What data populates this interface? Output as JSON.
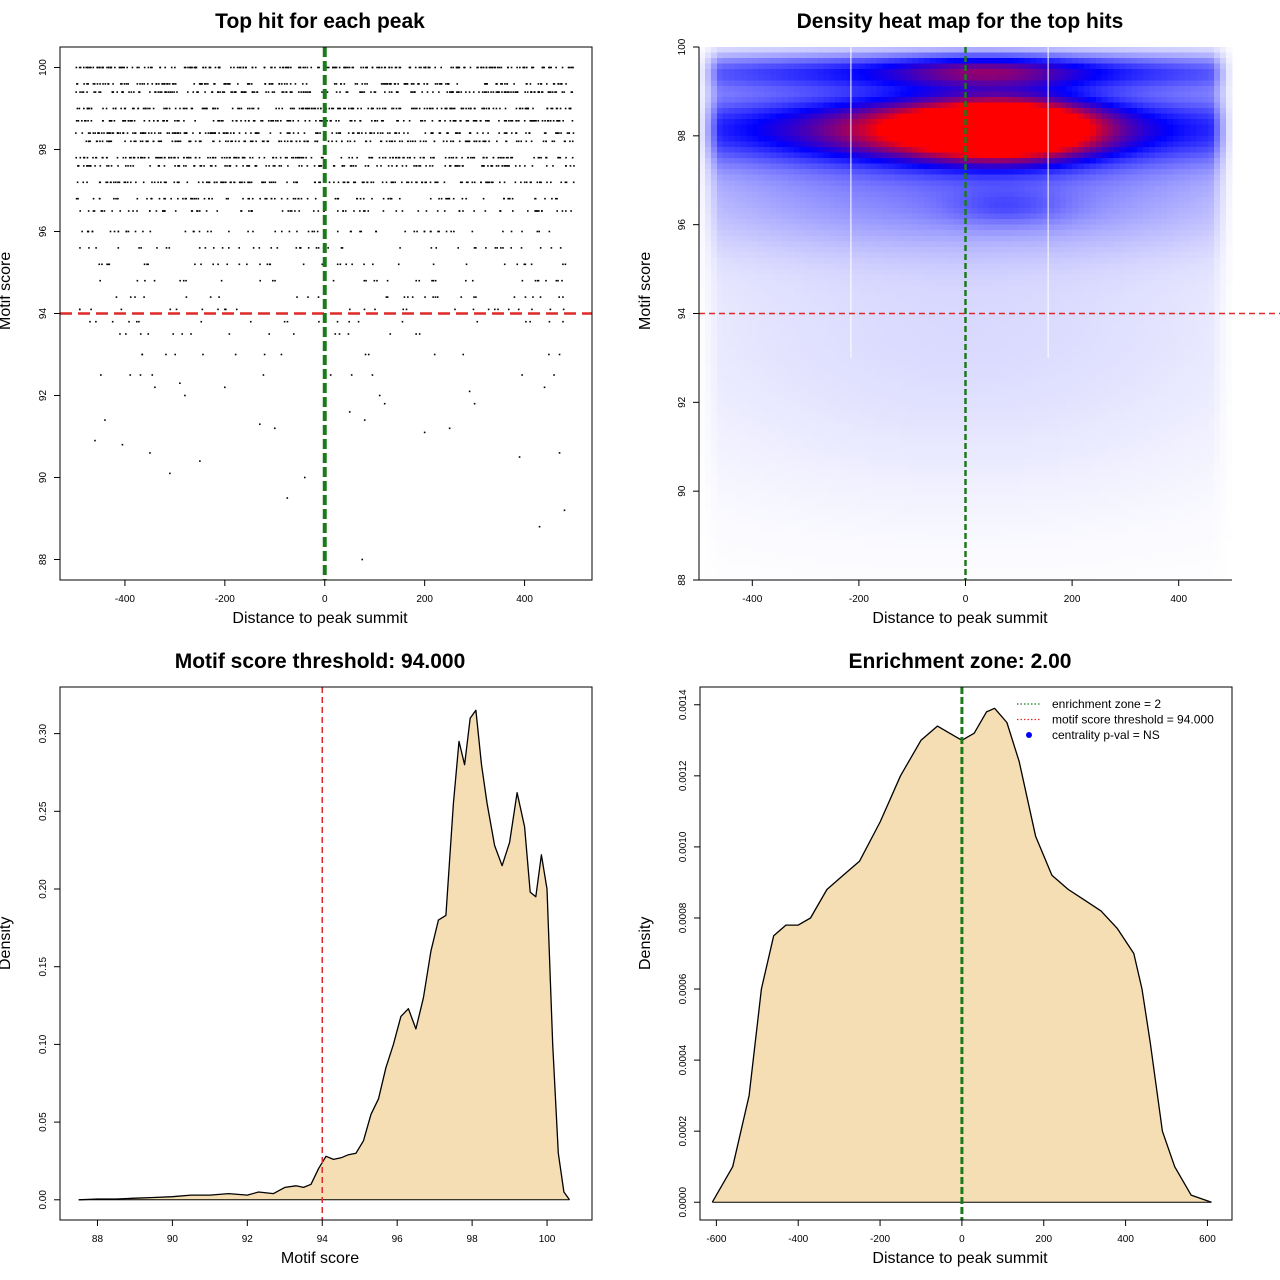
{
  "chart_data": [
    {
      "type": "scatter",
      "title": "Top hit for each peak",
      "xlabel": "Distance to peak summit",
      "ylabel": "Motif score",
      "xlim": [
        -530,
        535
      ],
      "ylim": [
        87.5,
        100.5
      ],
      "xticks": [
        -400,
        -200,
        0,
        200,
        400
      ],
      "yticks": [
        88,
        90,
        92,
        94,
        96,
        98,
        100
      ],
      "xtick_labels": [
        "-400",
        "-200",
        "0",
        "200",
        "400"
      ],
      "ytick_labels": [
        "88",
        "90",
        "92",
        "94",
        "96",
        "98",
        "100"
      ],
      "score_levels": [
        100,
        99.6,
        99.4,
        99.0,
        98.7,
        98.4,
        98.2,
        97.8,
        97.6,
        97.2,
        96.8,
        96.5,
        96.0,
        95.6,
        95.2,
        94.8,
        94.4,
        94.1,
        93.8,
        93.5,
        93.0,
        92.5,
        92.2,
        91.5,
        91.0,
        90.5,
        90.0,
        89.5,
        89.2,
        88.8,
        88.0
      ],
      "points_per_level": [
        200,
        150,
        170,
        170,
        160,
        170,
        150,
        170,
        130,
        150,
        90,
        80,
        60,
        45,
        38,
        32,
        28,
        26,
        20,
        16,
        14,
        10,
        9,
        7,
        6,
        5,
        4,
        2,
        1,
        1,
        1
      ],
      "points_low_scores": [
        [
          -75,
          89.5
        ],
        [
          -40,
          90.0
        ],
        [
          480,
          89.2
        ],
        [
          430,
          88.8
        ],
        [
          75,
          88.0
        ],
        [
          -310,
          90.1
        ],
        [
          -350,
          90.6
        ],
        [
          -250,
          90.4
        ],
        [
          -460,
          90.9
        ],
        [
          -405,
          90.8
        ],
        [
          390,
          90.5
        ],
        [
          470,
          90.6
        ],
        [
          -130,
          91.3
        ],
        [
          -100,
          91.2
        ],
        [
          80,
          91.4
        ],
        [
          200,
          91.1
        ],
        [
          250,
          91.2
        ],
        [
          -440,
          91.4
        ],
        [
          300,
          91.8
        ],
        [
          -280,
          92.0
        ],
        [
          50,
          91.6
        ],
        [
          110,
          92.0
        ],
        [
          120,
          91.8
        ],
        [
          -200,
          92.2
        ],
        [
          -340,
          92.2
        ],
        [
          -290,
          92.3
        ],
        [
          440,
          92.2
        ],
        [
          290,
          92.1
        ]
      ],
      "reference_lines": {
        "horizontal_score": 94,
        "vertical_distance": 0
      },
      "colors": {
        "points": "#000000",
        "threshold_line": "#dd2a2a",
        "center_line": "#1c7a1c"
      }
    },
    {
      "type": "heatmap",
      "title": "Density heat map for the top hits",
      "xlabel": "Distance to peak summit",
      "ylabel": "Motif score",
      "xlim": [
        -500,
        500
      ],
      "ylim": [
        88,
        100
      ],
      "xticks": [
        -400,
        -200,
        0,
        200,
        400
      ],
      "yticks": [
        88,
        90,
        92,
        94,
        96,
        98,
        100
      ],
      "xtick_labels": [
        "-400",
        "-200",
        "0",
        "200",
        "400"
      ],
      "ytick_labels": [
        "88",
        "90",
        "92",
        "94",
        "96",
        "98",
        "100"
      ],
      "color_scale": [
        "#ffffff",
        "#0000ff",
        "#ff0000"
      ],
      "density_blobs": [
        {
          "x": 80,
          "y": 98.15,
          "sx": 110,
          "sy": 0.45,
          "w": 1.0
        },
        {
          "x": -50,
          "y": 98.15,
          "sx": 160,
          "sy": 0.45,
          "w": 0.45
        },
        {
          "x": 0,
          "y": 98.2,
          "sx": 600,
          "sy": 0.6,
          "w": 0.52
        },
        {
          "x": 0,
          "y": 99.45,
          "sx": 520,
          "sy": 0.3,
          "w": 0.42
        },
        {
          "x": 40,
          "y": 99.45,
          "sx": 120,
          "sy": 0.25,
          "w": 0.28
        },
        {
          "x": 0,
          "y": 96.7,
          "sx": 420,
          "sy": 0.9,
          "w": 0.22
        },
        {
          "x": 80,
          "y": 96.4,
          "sx": 80,
          "sy": 0.3,
          "w": 0.12
        },
        {
          "x": 0,
          "y": 94.3,
          "sx": 480,
          "sy": 1.8,
          "w": 0.06
        },
        {
          "x": 0,
          "y": 91.5,
          "sx": 420,
          "sy": 1.8,
          "w": 0.035
        }
      ],
      "reference_lines": {
        "horizontal_score": 94,
        "vertical_distance": 0,
        "white_zone_bounds": [
          -215,
          155
        ]
      },
      "colors": {
        "threshold_line": "#dd2a2a",
        "center_line": "#1c7a1c",
        "zone_lines": "#ffffff"
      }
    },
    {
      "type": "area",
      "title": "Motif score threshold: 94.000",
      "xlabel": "Motif score",
      "ylabel": "Density",
      "xlim": [
        87.0,
        101.2
      ],
      "ylim": [
        -0.013,
        0.33
      ],
      "xticks": [
        88,
        90,
        92,
        94,
        96,
        98,
        100
      ],
      "yticks": [
        0.0,
        0.05,
        0.1,
        0.15,
        0.2,
        0.25,
        0.3
      ],
      "xtick_labels": [
        "88",
        "90",
        "92",
        "94",
        "96",
        "98",
        "100"
      ],
      "ytick_labels": [
        "0.00",
        "0.05",
        "0.10",
        "0.15",
        "0.20",
        "0.25",
        "0.30"
      ],
      "x": [
        87.5,
        88.0,
        88.5,
        89.0,
        89.5,
        90.0,
        90.5,
        91.0,
        91.5,
        92.0,
        92.3,
        92.7,
        93.0,
        93.3,
        93.5,
        93.7,
        93.9,
        94.1,
        94.3,
        94.5,
        94.7,
        94.9,
        95.1,
        95.3,
        95.5,
        95.7,
        95.9,
        96.1,
        96.3,
        96.5,
        96.7,
        96.9,
        97.1,
        97.3,
        97.5,
        97.65,
        97.8,
        97.95,
        98.1,
        98.25,
        98.4,
        98.6,
        98.8,
        99.0,
        99.2,
        99.4,
        99.55,
        99.7,
        99.85,
        100.0,
        100.15,
        100.3,
        100.45,
        100.6
      ],
      "values": [
        0.0,
        0.0005,
        0.0005,
        0.001,
        0.0015,
        0.002,
        0.003,
        0.003,
        0.004,
        0.003,
        0.005,
        0.004,
        0.008,
        0.009,
        0.008,
        0.01,
        0.02,
        0.028,
        0.026,
        0.027,
        0.029,
        0.03,
        0.038,
        0.055,
        0.065,
        0.085,
        0.1,
        0.118,
        0.123,
        0.11,
        0.13,
        0.16,
        0.18,
        0.183,
        0.255,
        0.295,
        0.28,
        0.31,
        0.315,
        0.28,
        0.255,
        0.228,
        0.215,
        0.23,
        0.262,
        0.24,
        0.198,
        0.195,
        0.222,
        0.2,
        0.1,
        0.03,
        0.005,
        0.0
      ],
      "reference_lines": {
        "vertical_score": 94
      },
      "colors": {
        "fill": "#f5deb3",
        "line": "#000000",
        "threshold_line": "#dd2a2a"
      }
    },
    {
      "type": "area",
      "title": "Enrichment zone: 2.00",
      "xlabel": "Distance to peak summit",
      "ylabel": "Density",
      "xlim": [
        -640,
        660
      ],
      "ylim": [
        -5e-05,
        0.00145
      ],
      "xticks": [
        -600,
        -400,
        -200,
        0,
        200,
        400,
        600
      ],
      "yticks": [
        0.0,
        0.0002,
        0.0004,
        0.0006,
        0.0008,
        0.001,
        0.0012,
        0.0014
      ],
      "xtick_labels": [
        "-600",
        "-400",
        "-200",
        "0",
        "200",
        "400",
        "600"
      ],
      "ytick_labels": [
        "0.0000",
        "0.0002",
        "0.0004",
        "0.0006",
        "0.0008",
        "0.0010",
        "0.0012",
        "0.0014"
      ],
      "x": [
        -610,
        -560,
        -520,
        -490,
        -460,
        -430,
        -400,
        -370,
        -330,
        -290,
        -250,
        -200,
        -150,
        -100,
        -60,
        -30,
        0,
        30,
        60,
        80,
        110,
        140,
        180,
        220,
        260,
        300,
        340,
        380,
        420,
        440,
        460,
        490,
        520,
        560,
        610
      ],
      "values": [
        0.0,
        0.0001,
        0.0003,
        0.0006,
        0.00075,
        0.00078,
        0.00078,
        0.0008,
        0.00088,
        0.00092,
        0.00096,
        0.00107,
        0.0012,
        0.0013,
        0.00134,
        0.00132,
        0.0013,
        0.00132,
        0.00138,
        0.00139,
        0.00135,
        0.00124,
        0.00103,
        0.00092,
        0.00088,
        0.00085,
        0.00082,
        0.00077,
        0.0007,
        0.0006,
        0.00045,
        0.0002,
        0.0001,
        2e-05,
        0.0
      ],
      "reference_lines": {
        "vertical_distance": 0
      },
      "legend": {
        "placement": "top-right",
        "entries": [
          {
            "label": "enrichment zone = 2",
            "color": "#1c7a1c",
            "style": "dotted"
          },
          {
            "label": "motif score threshold = 94.000",
            "color": "#dd2a2a",
            "style": "dotted"
          },
          {
            "label": "centrality p-val = NS",
            "color": "#0000ff",
            "style": "point"
          }
        ]
      },
      "colors": {
        "fill": "#f5deb3",
        "line": "#000000",
        "center_line": "#1c7a1c"
      }
    }
  ]
}
